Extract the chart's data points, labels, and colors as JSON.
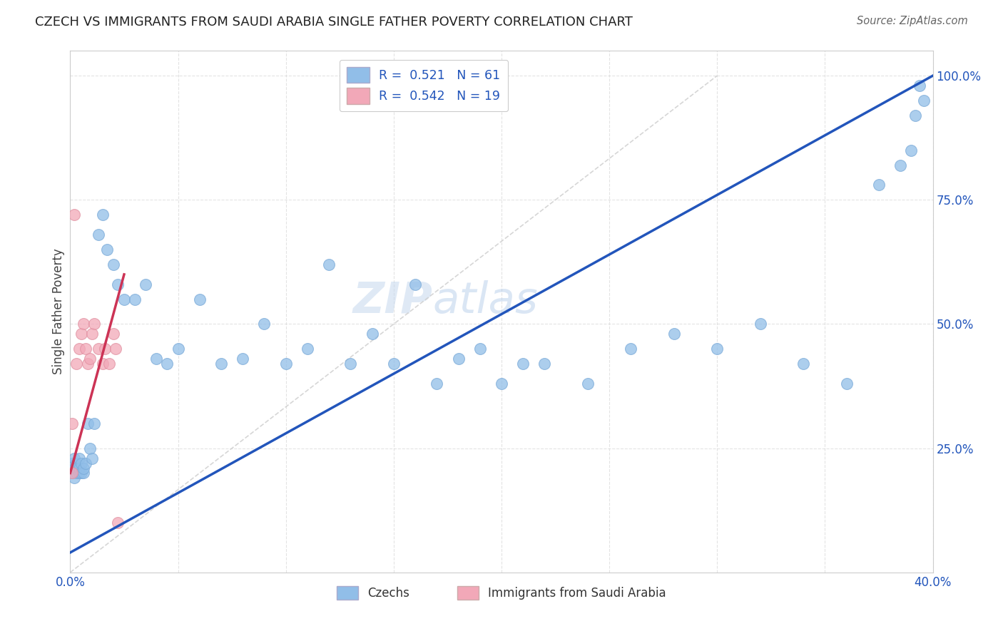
{
  "title": "CZECH VS IMMIGRANTS FROM SAUDI ARABIA SINGLE FATHER POVERTY CORRELATION CHART",
  "source": "Source: ZipAtlas.com",
  "ylabel": "Single Father Poverty",
  "xlim": [
    0.0,
    0.4
  ],
  "ylim": [
    0.0,
    1.05
  ],
  "xtick_positions": [
    0.0,
    0.1,
    0.2,
    0.3,
    0.4
  ],
  "xticklabels_show": {
    "0.0": "0.0%",
    "0.40": "40.0%"
  },
  "ytick_right_positions": [
    0.25,
    0.5,
    0.75,
    1.0
  ],
  "ytick_right_labels": [
    "25.0%",
    "50.0%",
    "75.0%",
    "100.0%"
  ],
  "czech_R": "0.521",
  "czech_N": "61",
  "saudi_R": "0.542",
  "saudi_N": "19",
  "blue_dot_color": "#91BEE8",
  "pink_dot_color": "#F2A8B8",
  "blue_line_color": "#2255BB",
  "pink_line_color": "#CC3355",
  "diag_color": "#CCCCCC",
  "grid_color": "#DDDDDD",
  "legend_blue_label": "Czechs",
  "legend_pink_label": "Immigrants from Saudi Arabia",
  "watermark_zip": "ZIP",
  "watermark_atlas": "atlas",
  "czech_x": [
    0.001,
    0.001,
    0.002,
    0.002,
    0.002,
    0.003,
    0.003,
    0.003,
    0.004,
    0.004,
    0.004,
    0.005,
    0.005,
    0.006,
    0.006,
    0.007,
    0.008,
    0.009,
    0.01,
    0.011,
    0.013,
    0.015,
    0.017,
    0.02,
    0.022,
    0.025,
    0.03,
    0.035,
    0.04,
    0.045,
    0.05,
    0.06,
    0.07,
    0.08,
    0.09,
    0.1,
    0.11,
    0.12,
    0.13,
    0.14,
    0.15,
    0.16,
    0.17,
    0.18,
    0.19,
    0.2,
    0.21,
    0.22,
    0.24,
    0.26,
    0.28,
    0.3,
    0.32,
    0.34,
    0.36,
    0.375,
    0.385,
    0.39,
    0.392,
    0.394,
    0.396
  ],
  "czech_y": [
    0.2,
    0.22,
    0.21,
    0.19,
    0.23,
    0.2,
    0.22,
    0.21,
    0.2,
    0.23,
    0.21,
    0.2,
    0.22,
    0.2,
    0.21,
    0.22,
    0.3,
    0.25,
    0.23,
    0.3,
    0.68,
    0.72,
    0.65,
    0.62,
    0.58,
    0.55,
    0.55,
    0.58,
    0.43,
    0.42,
    0.45,
    0.55,
    0.42,
    0.43,
    0.5,
    0.42,
    0.45,
    0.62,
    0.42,
    0.48,
    0.42,
    0.58,
    0.38,
    0.43,
    0.45,
    0.38,
    0.42,
    0.42,
    0.38,
    0.45,
    0.48,
    0.45,
    0.5,
    0.42,
    0.38,
    0.78,
    0.82,
    0.85,
    0.92,
    0.98,
    0.95
  ],
  "saudi_x": [
    0.001,
    0.001,
    0.002,
    0.003,
    0.004,
    0.005,
    0.006,
    0.007,
    0.008,
    0.009,
    0.01,
    0.011,
    0.013,
    0.015,
    0.016,
    0.018,
    0.02,
    0.021,
    0.022
  ],
  "saudi_y": [
    0.2,
    0.3,
    0.72,
    0.42,
    0.45,
    0.48,
    0.5,
    0.45,
    0.42,
    0.43,
    0.48,
    0.5,
    0.45,
    0.42,
    0.45,
    0.42,
    0.48,
    0.45,
    0.1
  ],
  "blue_line_x": [
    0.0,
    0.4
  ],
  "blue_line_y": [
    0.04,
    1.0
  ],
  "pink_line_x": [
    0.0,
    0.025
  ],
  "pink_line_y": [
    0.2,
    0.6
  ]
}
